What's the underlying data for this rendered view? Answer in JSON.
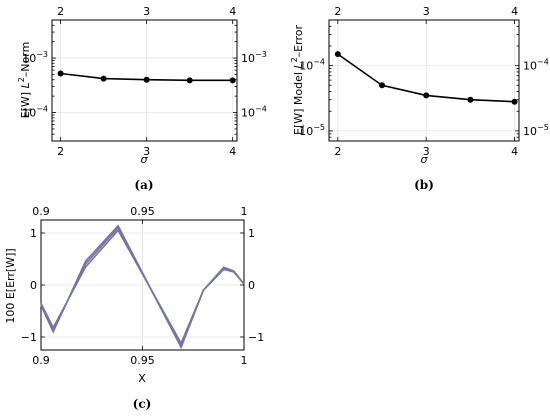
{
  "chart_data": [
    {
      "type": "line",
      "caption": "(a)",
      "xlabel": "σ",
      "ylabel": "E[W] L²–Norm",
      "ylabel_parts": [
        "E[W] ",
        "L",
        "2",
        "–Norm"
      ],
      "yscale": "log",
      "xlim": [
        1.9,
        4.05
      ],
      "ylim": [
        3e-05,
        0.005
      ],
      "xticks": [
        2,
        3,
        4
      ],
      "xtick_labels": [
        "2",
        "3",
        "4"
      ],
      "yticks": [
        0.0001,
        0.001
      ],
      "ytick_base": "10",
      "ytick_exps": [
        "−4",
        "−3"
      ],
      "color": "#000000",
      "x": [
        2,
        2.5,
        3,
        3.5,
        4
      ],
      "y": [
        0.00052,
        0.00042,
        0.0004,
        0.00039,
        0.00039
      ]
    },
    {
      "type": "line",
      "caption": "(b)",
      "xlabel": "σ",
      "ylabel": "E[W] Model L²–Error",
      "ylabel_parts": [
        "E[W] Model ",
        "L",
        "2",
        "–Error"
      ],
      "yscale": "log",
      "xlim": [
        1.9,
        4.05
      ],
      "ylim": [
        7e-06,
        0.0005
      ],
      "xticks": [
        2,
        3,
        4
      ],
      "xtick_labels": [
        "2",
        "3",
        "4"
      ],
      "yticks": [
        1e-05,
        0.0001
      ],
      "ytick_base": "10",
      "ytick_exps": [
        "−5",
        "−4"
      ],
      "color": "#000000",
      "x": [
        2,
        2.5,
        3,
        3.5,
        4
      ],
      "y": [
        0.00015,
        5e-05,
        3.5e-05,
        3e-05,
        2.8e-05
      ]
    },
    {
      "type": "line",
      "caption": "(c)",
      "xlabel": "X",
      "ylabel": "100 E[Err[W]]",
      "yscale": "linear",
      "xlim": [
        0.9,
        1.0
      ],
      "ylim": [
        -1.25,
        1.25
      ],
      "xticks": [
        0.9,
        0.95,
        1.0
      ],
      "xtick_labels": [
        "0.9",
        "0.95",
        "1"
      ],
      "yticks": [
        -1,
        0,
        1
      ],
      "ytick_labels": [
        "−1",
        "0",
        "1"
      ],
      "color": "#7474a6",
      "series": [
        {
          "x": [
            0.9,
            0.906,
            0.922,
            0.938,
            0.969,
            0.98,
            0.99,
            0.995,
            1.0
          ],
          "y": [
            -0.35,
            -0.82,
            0.35,
            1.05,
            -1.12,
            -0.1,
            0.3,
            0.25,
            0.02
          ]
        },
        {
          "x": [
            0.9,
            0.906,
            0.922,
            0.938,
            0.969,
            0.98,
            0.99,
            0.995,
            1.0
          ],
          "y": [
            -0.37,
            -0.88,
            0.41,
            1.1,
            -1.17,
            -0.1,
            0.32,
            0.26,
            0.02
          ]
        },
        {
          "x": [
            0.9,
            0.906,
            0.922,
            0.938,
            0.969,
            0.98,
            0.99,
            0.995,
            1.0
          ],
          "y": [
            -0.39,
            -0.9,
            0.46,
            1.14,
            -1.2,
            -0.1,
            0.34,
            0.27,
            0.02
          ]
        }
      ]
    }
  ]
}
